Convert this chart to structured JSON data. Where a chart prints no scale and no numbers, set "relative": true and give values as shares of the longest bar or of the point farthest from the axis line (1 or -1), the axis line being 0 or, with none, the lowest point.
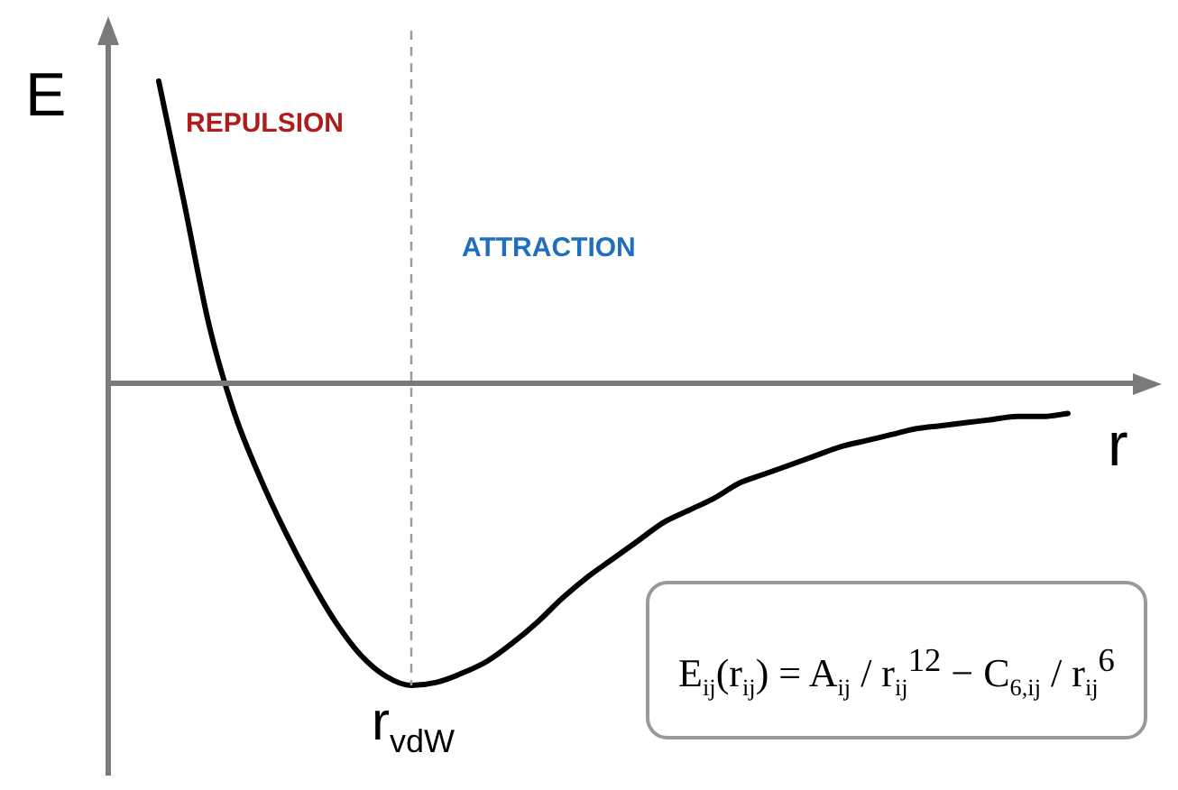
{
  "chart_data": {
    "type": "line",
    "relative": true,
    "xlabel": "r",
    "ylabel": "E",
    "legend": false,
    "grid": false,
    "marker": "none",
    "categories": [
      null,
      null,
      null,
      null,
      null,
      null,
      null,
      null,
      null,
      null,
      null,
      null,
      null,
      null,
      null,
      null,
      null,
      null,
      null,
      null,
      null,
      null,
      null,
      null,
      null,
      null,
      null,
      null,
      null,
      null,
      null,
      null,
      null,
      null,
      null,
      null,
      null
    ],
    "series": [
      {
        "color": "#000000",
        "values": [
          1,
          0.6,
          0.19,
          -0.1,
          -0.31,
          -0.49,
          -0.65,
          -0.79,
          -0.9,
          -0.97,
          -1,
          -0.99,
          -0.96,
          -0.92,
          -0.86,
          -0.79,
          -0.71,
          -0.64,
          -0.58,
          -0.52,
          -0.46,
          -0.42,
          -0.38,
          -0.33,
          -0.3,
          -0.27,
          -0.24,
          -0.21,
          -0.19,
          -0.17,
          -0.15,
          -0.14,
          -0.13,
          -0.12,
          -0.11,
          -0.11,
          -0.1
        ]
      }
    ],
    "annotations": [
      "r$_{vdW}$",
      "REPULSION",
      "ATTRACTION",
      "E$_{ij}$(r$_{ij}$) = A$_{ij}$ / r$_{ij}$$^{12}$ − C$_{6,ij}$ / r$_{ij}$$^{6}$"
    ]
  }
}
